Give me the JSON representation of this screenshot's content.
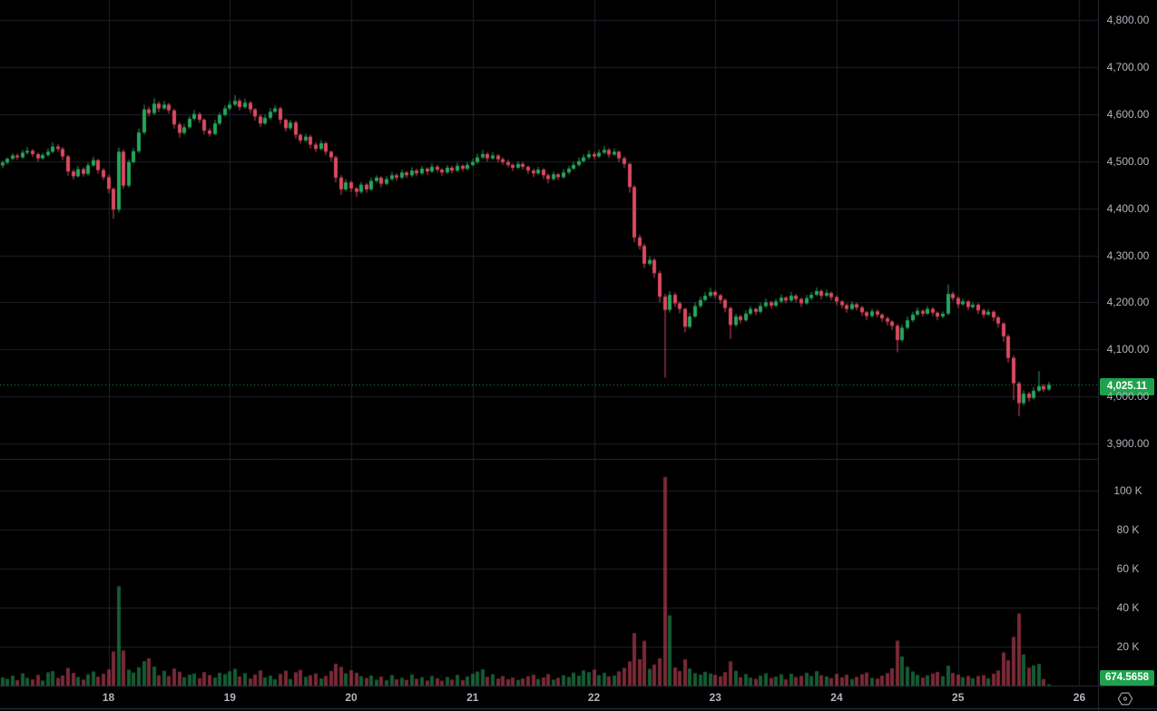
{
  "chart_data": {
    "type": "candlestick",
    "panes": [
      "price",
      "volume"
    ],
    "last_price": 4025.11,
    "last_price_label": "4,025.11",
    "last_volume_label": "674.5658",
    "price_axis_ticks": [
      {
        "label": "4,800.00",
        "value": 4800
      },
      {
        "label": "4,700.00",
        "value": 4700
      },
      {
        "label": "4,600.00",
        "value": 4600
      },
      {
        "label": "4,500.00",
        "value": 4500
      },
      {
        "label": "4,400.00",
        "value": 4400
      },
      {
        "label": "4,300.00",
        "value": 4300
      },
      {
        "label": "4,200.00",
        "value": 4200
      },
      {
        "label": "4,100.00",
        "value": 4100
      },
      {
        "label": "4,000.00",
        "value": 4000
      },
      {
        "label": "3,900.00",
        "value": 3900
      }
    ],
    "volume_axis_ticks": [
      {
        "label": "100 K",
        "value": 100
      },
      {
        "label": "80 K",
        "value": 80
      },
      {
        "label": "60 K",
        "value": 60
      },
      {
        "label": "40 K",
        "value": 40
      },
      {
        "label": "20 K",
        "value": 20
      }
    ],
    "time_axis_ticks": [
      {
        "label": "18",
        "index": 21
      },
      {
        "label": "19",
        "index": 45
      },
      {
        "label": "20",
        "index": 69
      },
      {
        "label": "21",
        "index": 93
      },
      {
        "label": "22",
        "index": 117
      },
      {
        "label": "23",
        "index": 141
      },
      {
        "label": "24",
        "index": 165
      },
      {
        "label": "25",
        "index": 189
      },
      {
        "label": "26",
        "index": 213
      }
    ],
    "first_open": 4491,
    "candles_format": [
      "close",
      "high_wick_extra",
      "low_wick_extra",
      "volume_thousands"
    ],
    "candles": [
      [
        4497,
        4,
        6,
        4.2
      ],
      [
        4505,
        3,
        4,
        3.5
      ],
      [
        4512,
        5,
        3,
        5.1
      ],
      [
        4508,
        4,
        5,
        2.8
      ],
      [
        4518,
        6,
        3,
        6.3
      ],
      [
        4522,
        8,
        4,
        4
      ],
      [
        4515,
        4,
        6,
        3.2
      ],
      [
        4506,
        3,
        7,
        5.5
      ],
      [
        4513,
        5,
        3,
        2.6
      ],
      [
        4520,
        7,
        4,
        6.8
      ],
      [
        4531,
        9,
        3,
        7.4
      ],
      [
        4526,
        5,
        6,
        3.9
      ],
      [
        4510,
        4,
        8,
        5.2
      ],
      [
        4478,
        3,
        9,
        9.1
      ],
      [
        4468,
        5,
        7,
        6.5
      ],
      [
        4483,
        7,
        3,
        4.4
      ],
      [
        4473,
        4,
        6,
        3.1
      ],
      [
        4491,
        6,
        4,
        5.8
      ],
      [
        4502,
        8,
        3,
        7.2
      ],
      [
        4481,
        3,
        8,
        4.6
      ],
      [
        4466,
        4,
        6,
        6.1
      ],
      [
        4441,
        5,
        9,
        8.3
      ],
      [
        4397,
        3,
        19,
        17.5
      ],
      [
        4520,
        9,
        6,
        51
      ],
      [
        4448,
        5,
        7,
        18
      ],
      [
        4498,
        6,
        4,
        8.2
      ],
      [
        4521,
        7,
        3,
        6.7
      ],
      [
        4561,
        8,
        4,
        9.4
      ],
      [
        4610,
        10,
        5,
        12.5
      ],
      [
        4602,
        6,
        7,
        14
      ],
      [
        4622,
        12,
        4,
        9.8
      ],
      [
        4612,
        5,
        8,
        5.3
      ],
      [
        4620,
        8,
        3,
        7.6
      ],
      [
        4608,
        4,
        7,
        4.9
      ],
      [
        4578,
        3,
        9,
        8.8
      ],
      [
        4560,
        5,
        10,
        7.1
      ],
      [
        4572,
        7,
        4,
        4.3
      ],
      [
        4590,
        6,
        3,
        5.6
      ],
      [
        4600,
        9,
        4,
        6.2
      ],
      [
        4588,
        4,
        7,
        3.8
      ],
      [
        4565,
        3,
        8,
        6.9
      ],
      [
        4558,
        5,
        6,
        5.4
      ],
      [
        4580,
        8,
        3,
        4.1
      ],
      [
        4598,
        6,
        4,
        6.6
      ],
      [
        4612,
        7,
        3,
        5.9
      ],
      [
        4620,
        8,
        4,
        7.3
      ],
      [
        4628,
        12,
        3,
        8.6
      ],
      [
        4615,
        5,
        7,
        4.7
      ],
      [
        4624,
        9,
        4,
        6.4
      ],
      [
        4610,
        4,
        8,
        3.6
      ],
      [
        4595,
        3,
        9,
        5.7
      ],
      [
        4580,
        5,
        7,
        7.8
      ],
      [
        4592,
        7,
        3,
        4.2
      ],
      [
        4605,
        8,
        4,
        5.1
      ],
      [
        4612,
        6,
        3,
        3.3
      ],
      [
        4588,
        4,
        9,
        6
      ],
      [
        4570,
        3,
        7,
        7.7
      ],
      [
        4582,
        6,
        4,
        3.4
      ],
      [
        4556,
        4,
        8,
        6.8
      ],
      [
        4544,
        3,
        7,
        8.1
      ],
      [
        4552,
        6,
        4,
        4.5
      ],
      [
        4535,
        4,
        8,
        5.3
      ],
      [
        4526,
        5,
        6,
        6.2
      ],
      [
        4538,
        7,
        3,
        3.7
      ],
      [
        4520,
        4,
        7,
        5
      ],
      [
        4508,
        3,
        8,
        7.5
      ],
      [
        4465,
        4,
        10,
        11.2
      ],
      [
        4440,
        5,
        12,
        9.6
      ],
      [
        4455,
        7,
        4,
        6.3
      ],
      [
        4442,
        4,
        8,
        7.9
      ],
      [
        4435,
        3,
        11,
        6.6
      ],
      [
        4450,
        6,
        4,
        4.8
      ],
      [
        4440,
        4,
        7,
        3.9
      ],
      [
        4458,
        7,
        3,
        5.2
      ],
      [
        4465,
        5,
        4,
        3
      ],
      [
        4452,
        3,
        8,
        4.6
      ],
      [
        4462,
        6,
        3,
        2.7
      ],
      [
        4470,
        7,
        4,
        5.4
      ],
      [
        4465,
        4,
        6,
        3.2
      ],
      [
        4476,
        6,
        3,
        4
      ],
      [
        4470,
        3,
        6,
        2.9
      ],
      [
        4480,
        7,
        4,
        5.7
      ],
      [
        4474,
        4,
        6,
        3.5
      ],
      [
        4484,
        6,
        3,
        4.3
      ],
      [
        4478,
        3,
        7,
        2.6
      ],
      [
        4488,
        7,
        3,
        5
      ],
      [
        4482,
        4,
        6,
        3.8
      ],
      [
        4476,
        3,
        7,
        2.5
      ],
      [
        4486,
        6,
        3,
        4.4
      ],
      [
        4480,
        4,
        6,
        3.1
      ],
      [
        4490,
        7,
        3,
        5.5
      ],
      [
        4484,
        3,
        6,
        2.8
      ],
      [
        4492,
        6,
        4,
        4.7
      ],
      [
        4498,
        7,
        3,
        6.1
      ],
      [
        4508,
        8,
        4,
        7.2
      ],
      [
        4515,
        9,
        3,
        8.4
      ],
      [
        4506,
        4,
        7,
        4.5
      ],
      [
        4512,
        7,
        3,
        5.8
      ],
      [
        4504,
        3,
        7,
        3.6
      ],
      [
        4498,
        4,
        6,
        4.9
      ],
      [
        4492,
        5,
        5,
        3.3
      ],
      [
        4486,
        3,
        7,
        4.1
      ],
      [
        4494,
        6,
        3,
        2.9
      ],
      [
        4488,
        4,
        6,
        3.7
      ],
      [
        4480,
        3,
        7,
        4.8
      ],
      [
        4474,
        4,
        8,
        5.6
      ],
      [
        4482,
        6,
        3,
        3.4
      ],
      [
        4470,
        3,
        8,
        4.2
      ],
      [
        4462,
        4,
        9,
        5.9
      ],
      [
        4472,
        6,
        3,
        3.1
      ],
      [
        4466,
        3,
        6,
        4
      ],
      [
        4476,
        7,
        3,
        5.3
      ],
      [
        4484,
        6,
        4,
        4.4
      ],
      [
        4492,
        7,
        3,
        6.7
      ],
      [
        4500,
        8,
        4,
        5.1
      ],
      [
        4508,
        7,
        3,
        7.8
      ],
      [
        4515,
        8,
        4,
        6.9
      ],
      [
        4510,
        5,
        6,
        8.2
      ],
      [
        4518,
        7,
        3,
        5.4
      ],
      [
        4524,
        8,
        4,
        6.6
      ],
      [
        4514,
        4,
        7,
        4.8
      ],
      [
        4520,
        7,
        3,
        5.2
      ],
      [
        4506,
        3,
        8,
        7.3
      ],
      [
        4494,
        4,
        9,
        9.1
      ],
      [
        4445,
        3,
        12,
        12.4
      ],
      [
        4338,
        4,
        10,
        27
      ],
      [
        4320,
        6,
        8,
        13.5
      ],
      [
        4282,
        5,
        9,
        23
      ],
      [
        4290,
        7,
        4,
        8.6
      ],
      [
        4262,
        4,
        10,
        10.8
      ],
      [
        4212,
        5,
        12,
        14
      ],
      [
        4184,
        6,
        144,
        107
      ],
      [
        4216,
        8,
        6,
        36
      ],
      [
        4198,
        5,
        8,
        9.3
      ],
      [
        4186,
        4,
        9,
        7.5
      ],
      [
        4148,
        3,
        12,
        13.5
      ],
      [
        4170,
        7,
        4,
        8.8
      ],
      [
        4192,
        8,
        3,
        6.4
      ],
      [
        4205,
        7,
        4,
        5.7
      ],
      [
        4214,
        8,
        3,
        7.1
      ],
      [
        4222,
        9,
        4,
        6.2
      ],
      [
        4215,
        4,
        7,
        5.5
      ],
      [
        4205,
        3,
        8,
        4.8
      ],
      [
        4188,
        4,
        9,
        6.9
      ],
      [
        4152,
        3,
        30,
        12.5
      ],
      [
        4170,
        6,
        4,
        7.6
      ],
      [
        4162,
        4,
        7,
        4.3
      ],
      [
        4176,
        7,
        3,
        5.9
      ],
      [
        4186,
        6,
        4,
        4.1
      ],
      [
        4180,
        3,
        7,
        3.5
      ],
      [
        4192,
        7,
        3,
        5.2
      ],
      [
        4200,
        8,
        4,
        6.3
      ],
      [
        4193,
        4,
        6,
        3.9
      ],
      [
        4202,
        6,
        3,
        4.6
      ],
      [
        4210,
        7,
        4,
        5.8
      ],
      [
        4204,
        3,
        6,
        3.2
      ],
      [
        4214,
        8,
        3,
        6.1
      ],
      [
        4207,
        4,
        7,
        4.4
      ],
      [
        4198,
        3,
        8,
        5
      ],
      [
        4209,
        7,
        3,
        6.6
      ],
      [
        4216,
        6,
        4,
        4.9
      ],
      [
        4224,
        8,
        3,
        7.4
      ],
      [
        4214,
        4,
        8,
        5.3
      ],
      [
        4220,
        7,
        3,
        4.7
      ],
      [
        4211,
        3,
        7,
        3.8
      ],
      [
        4202,
        4,
        8,
        6
      ],
      [
        4194,
        3,
        7,
        4.2
      ],
      [
        4186,
        4,
        8,
        5.6
      ],
      [
        4196,
        6,
        3,
        3.4
      ],
      [
        4189,
        3,
        6,
        4.5
      ],
      [
        4179,
        4,
        8,
        5.8
      ],
      [
        4171,
        3,
        9,
        6.7
      ],
      [
        4181,
        6,
        3,
        4
      ],
      [
        4174,
        4,
        6,
        3.6
      ],
      [
        4166,
        3,
        7,
        5.1
      ],
      [
        4159,
        4,
        8,
        6.4
      ],
      [
        4150,
        3,
        9,
        8.9
      ],
      [
        4120,
        4,
        26,
        23
      ],
      [
        4146,
        7,
        4,
        15
      ],
      [
        4162,
        8,
        3,
        9.7
      ],
      [
        4174,
        6,
        4,
        7.2
      ],
      [
        4182,
        7,
        3,
        5.5
      ],
      [
        4176,
        3,
        6,
        4.1
      ],
      [
        4186,
        6,
        3,
        5.3
      ],
      [
        4178,
        4,
        7,
        6.2
      ],
      [
        4170,
        3,
        8,
        7
      ],
      [
        4176,
        5,
        4,
        4.8
      ],
      [
        4218,
        20,
        3,
        10.2
      ],
      [
        4209,
        5,
        6,
        6.5
      ],
      [
        4196,
        4,
        8,
        5.7
      ],
      [
        4202,
        6,
        3,
        4.3
      ],
      [
        4190,
        3,
        7,
        5
      ],
      [
        4195,
        5,
        4,
        3.7
      ],
      [
        4183,
        3,
        8,
        4.9
      ],
      [
        4174,
        4,
        7,
        5.4
      ],
      [
        4180,
        6,
        3,
        3.8
      ],
      [
        4168,
        3,
        8,
        6.1
      ],
      [
        4155,
        4,
        9,
        7.8
      ],
      [
        4128,
        3,
        12,
        17
      ],
      [
        4082,
        4,
        10,
        13
      ],
      [
        4028,
        5,
        36,
        25
      ],
      [
        3986,
        4,
        28,
        37
      ],
      [
        4006,
        7,
        5,
        16
      ],
      [
        3997,
        4,
        8,
        9.2
      ],
      [
        4012,
        8,
        4,
        10.4
      ],
      [
        4022,
        32,
        3,
        11.1
      ],
      [
        4015,
        4,
        6,
        3.4
      ],
      [
        4025.11,
        6,
        3,
        0.67
      ]
    ],
    "colors": {
      "background": "#000000",
      "up": "#26a65c",
      "down": "#dc4a60",
      "badge_green": "#1fa24d",
      "last_price_line": "#26a65c",
      "grid": "#1e222b",
      "axis_border": "#2a2e39",
      "pane_separator": "#262b36",
      "bottom_border": "#363a45",
      "axis_text": "#b2b5be",
      "icon_gray": "#9aa0a6"
    },
    "icons": {
      "axis_settings": "gear-hexagon-icon"
    }
  }
}
